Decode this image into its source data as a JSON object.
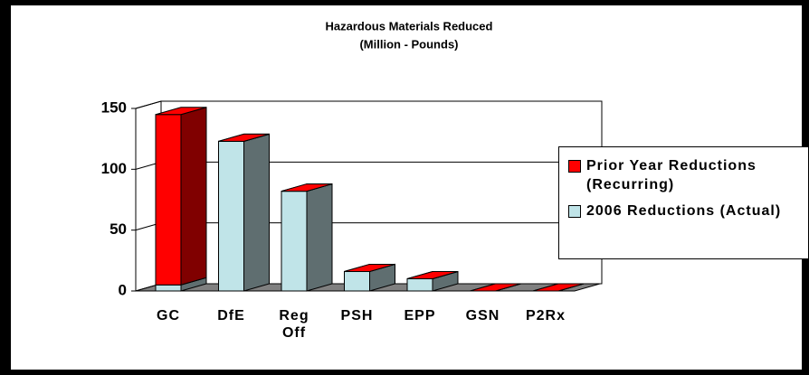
{
  "chart_data": {
    "type": "bar3d_stacked",
    "title": "Hazardous Materials Reduced",
    "subtitle": "(Million - Pounds)",
    "categories": [
      "GC",
      "DfE",
      "Reg Off",
      "PSH",
      "EPP",
      "GSN",
      "P2Rx"
    ],
    "series": [
      {
        "name": "2006 Reductions (Actual)",
        "color": "#c0e4e8",
        "side": "#5f6e70",
        "values": [
          5,
          123,
          82,
          16,
          10,
          0,
          0
        ]
      },
      {
        "name": "Prior Year Reductions (Recurring)",
        "color": "#ff0000",
        "side": "#800000",
        "values": [
          140,
          0,
          0,
          0,
          0,
          0,
          0
        ]
      }
    ],
    "ylim": [
      0,
      150
    ],
    "yticks": [
      0,
      50,
      100,
      150
    ],
    "grid": true,
    "legend": "right"
  }
}
